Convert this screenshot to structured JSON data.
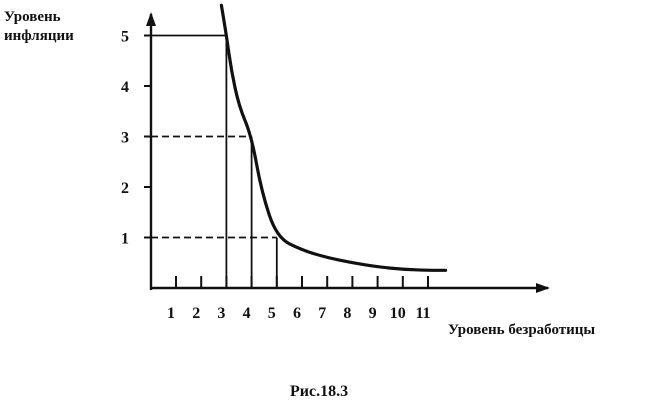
{
  "chart_data": {
    "type": "line",
    "ylabel": "Уровень\nинфляции",
    "xlabel": "Уровень безработицы",
    "title": "",
    "caption": "Рис.18.3",
    "x_ticks": [
      1,
      2,
      3,
      4,
      5,
      6,
      7,
      8,
      9,
      10,
      11
    ],
    "y_ticks": [
      1,
      2,
      3,
      4,
      5
    ],
    "xlim": [
      0,
      15
    ],
    "ylim": [
      0,
      5.7
    ],
    "grid": false,
    "series": [
      {
        "values": [
          {
            "x": 2.8,
            "y": 5.6
          },
          {
            "x": 3.0,
            "y": 5.0
          },
          {
            "x": 3.2,
            "y": 4.3
          },
          {
            "x": 3.5,
            "y": 3.6
          },
          {
            "x": 4.0,
            "y": 3.0
          },
          {
            "x": 4.4,
            "y": 1.9
          },
          {
            "x": 5.0,
            "y": 1.0
          },
          {
            "x": 6.0,
            "y": 0.75
          },
          {
            "x": 7.0,
            "y": 0.6
          },
          {
            "x": 8.0,
            "y": 0.5
          },
          {
            "x": 9.0,
            "y": 0.42
          },
          {
            "x": 10.0,
            "y": 0.37
          },
          {
            "x": 11.0,
            "y": 0.35
          },
          {
            "x": 11.7,
            "y": 0.35
          }
        ]
      }
    ],
    "guides": [
      {
        "x": 3,
        "y": 5
      },
      {
        "x": 4,
        "y": 3
      },
      {
        "x": 5,
        "y": 1
      }
    ]
  }
}
